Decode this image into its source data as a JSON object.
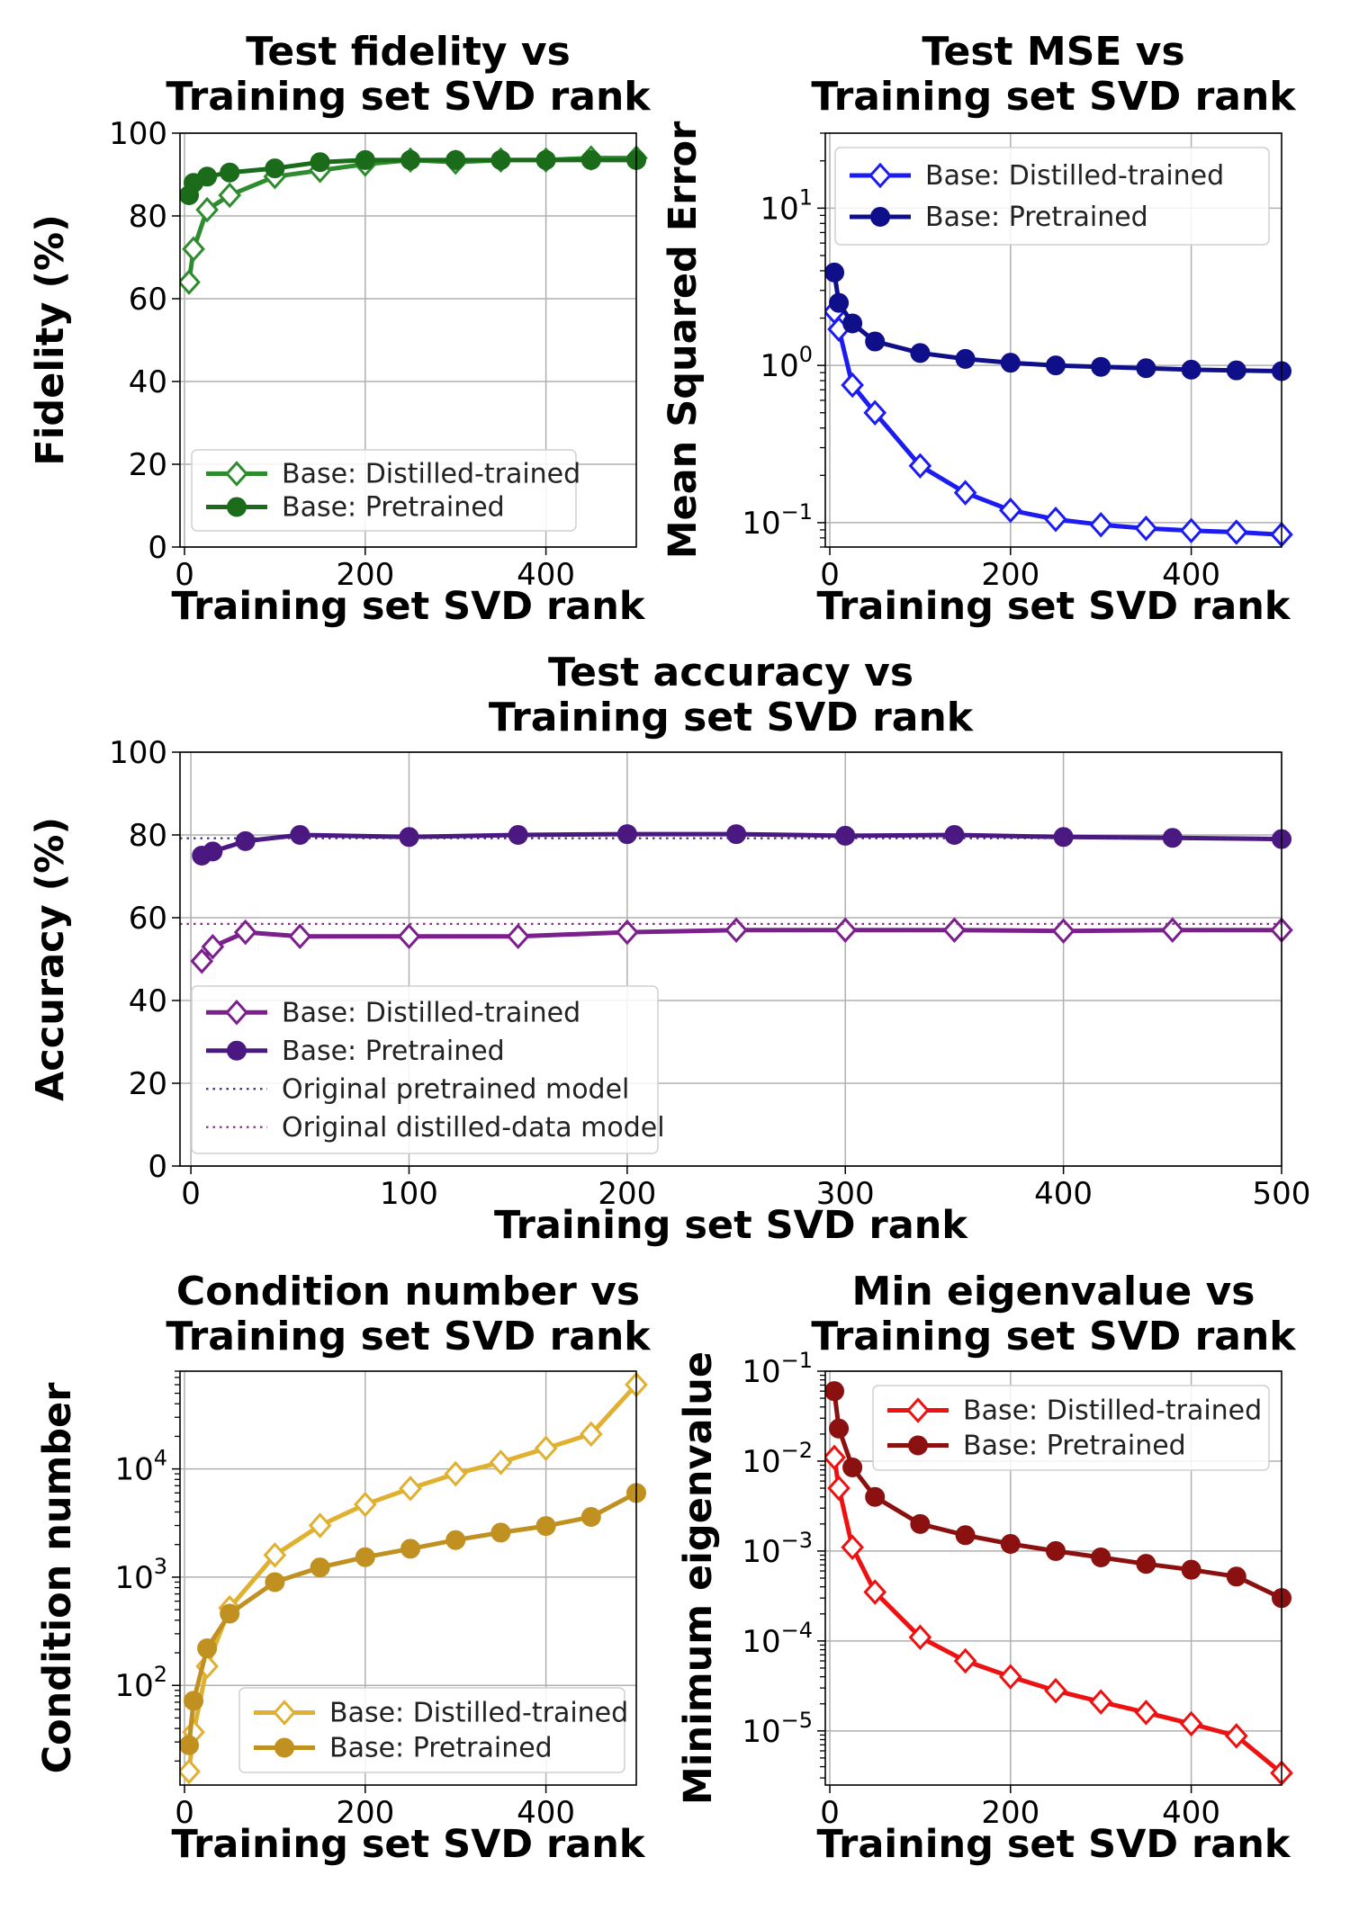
{
  "chart_data": [
    {
      "id": "fidelity",
      "type": "line",
      "title": [
        "Test fidelity vs",
        "Training set SVD rank"
      ],
      "xlabel": "Training set SVD rank",
      "ylabel": "Fidelity (%)",
      "xlim": [
        -5,
        500
      ],
      "ylim": [
        0,
        100
      ],
      "yscale": "linear",
      "xticks": [
        0,
        200,
        400
      ],
      "xtick_labels": [
        "0",
        "200",
        "400"
      ],
      "yticks": [
        0,
        20,
        40,
        60,
        80,
        100
      ],
      "ytick_labels": [
        "0",
        "20",
        "40",
        "60",
        "80",
        "100"
      ],
      "legend_position": "lower-center",
      "series": [
        {
          "name": "Base: Distilled-trained",
          "color": "#2e8b2e",
          "marker": "diamond-open",
          "x": [
            5,
            10,
            25,
            50,
            100,
            150,
            200,
            250,
            300,
            350,
            400,
            450,
            500
          ],
          "values": [
            64,
            72,
            81.5,
            85,
            89.5,
            91,
            92.5,
            93.5,
            93,
            93.5,
            93.5,
            94,
            94
          ]
        },
        {
          "name": "Base: Pretrained",
          "color": "#1a6b1a",
          "marker": "circle",
          "x": [
            5,
            10,
            25,
            50,
            100,
            150,
            200,
            250,
            300,
            350,
            400,
            450,
            500
          ],
          "values": [
            85,
            88,
            89.5,
            90.5,
            91.5,
            93,
            93.5,
            93.5,
            93.5,
            93.5,
            93.5,
            93.5,
            93.5
          ]
        }
      ]
    },
    {
      "id": "mse",
      "type": "line",
      "title": [
        "Test MSE vs",
        "Training set SVD rank"
      ],
      "xlabel": "Training set SVD rank",
      "ylabel": "Mean Squared Error",
      "xlim": [
        -5,
        500
      ],
      "ylim": [
        0.07,
        30
      ],
      "yscale": "log",
      "xticks": [
        0,
        200,
        400
      ],
      "xtick_labels": [
        "0",
        "200",
        "400"
      ],
      "yticks": [
        0.1,
        1,
        10
      ],
      "ytick_labels": [
        "10",
        "10",
        "10"
      ],
      "ytick_exps": [
        "−1",
        "0",
        "1"
      ],
      "legend_position": "upper-right",
      "series": [
        {
          "name": "Base: Distilled-trained",
          "color": "#1c1cf0",
          "marker": "diamond-open",
          "x": [
            5,
            10,
            25,
            50,
            100,
            150,
            200,
            250,
            300,
            350,
            400,
            450,
            500
          ],
          "values": [
            2.2,
            1.7,
            0.75,
            0.5,
            0.23,
            0.155,
            0.12,
            0.105,
            0.097,
            0.092,
            0.089,
            0.087,
            0.084
          ]
        },
        {
          "name": "Base: Pretrained",
          "color": "#0f0f8a",
          "marker": "circle",
          "x": [
            5,
            10,
            25,
            50,
            100,
            150,
            200,
            250,
            300,
            350,
            400,
            450,
            500
          ],
          "values": [
            3.9,
            2.5,
            1.85,
            1.42,
            1.2,
            1.1,
            1.04,
            1.0,
            0.98,
            0.96,
            0.94,
            0.93,
            0.92
          ]
        }
      ]
    },
    {
      "id": "accuracy",
      "type": "line",
      "title": [
        "Test accuracy vs",
        "Training set SVD rank"
      ],
      "xlabel": "Training set SVD rank",
      "ylabel": "Accuracy (%)",
      "xlim": [
        -5,
        500
      ],
      "ylim": [
        0,
        100
      ],
      "yscale": "linear",
      "xticks": [
        0,
        100,
        200,
        300,
        400,
        500
      ],
      "xtick_labels": [
        "0",
        "100",
        "200",
        "300",
        "400",
        "500"
      ],
      "yticks": [
        0,
        20,
        40,
        60,
        80,
        100
      ],
      "ytick_labels": [
        "0",
        "20",
        "40",
        "60",
        "80",
        "100"
      ],
      "legend_position": "lower-left",
      "series": [
        {
          "name": "Base: Distilled-trained",
          "color": "#7b1f8c",
          "marker": "diamond-open",
          "x": [
            5,
            10,
            25,
            50,
            100,
            150,
            200,
            250,
            300,
            350,
            400,
            450,
            500
          ],
          "values": [
            49.5,
            53,
            56.5,
            55.5,
            55.5,
            55.5,
            56.5,
            57,
            57,
            57,
            56.8,
            57,
            57
          ]
        },
        {
          "name": "Base: Pretrained",
          "color": "#4b1882",
          "marker": "circle",
          "x": [
            5,
            10,
            25,
            50,
            100,
            150,
            200,
            250,
            300,
            350,
            400,
            450,
            500
          ],
          "values": [
            75,
            76,
            78.5,
            80,
            79.5,
            80,
            80.2,
            80.2,
            79.8,
            80,
            79.5,
            79.3,
            79
          ]
        },
        {
          "name": "Original pretrained model",
          "color": "#3a2a7a",
          "style": "dotted",
          "y": 79.2
        },
        {
          "name": "Original distilled-data model",
          "color": "#8a2a8a",
          "style": "dotted",
          "y": 58.5
        }
      ]
    },
    {
      "id": "condition",
      "type": "line",
      "title": [
        "Condition number vs",
        "Training set SVD rank"
      ],
      "xlabel": "Training set SVD rank",
      "ylabel": "Condition number",
      "xlim": [
        -5,
        500
      ],
      "ylim": [
        12,
        80000
      ],
      "yscale": "log",
      "xticks": [
        0,
        200,
        400
      ],
      "xtick_labels": [
        "0",
        "200",
        "400"
      ],
      "yticks": [
        100,
        1000,
        10000
      ],
      "ytick_labels": [
        "10",
        "10",
        "10"
      ],
      "ytick_exps": [
        "2",
        "3",
        "4"
      ],
      "legend_position": "lower-right",
      "series": [
        {
          "name": "Base: Distilled-trained",
          "color": "#e0b030",
          "marker": "diamond-open",
          "x": [
            5,
            10,
            25,
            50,
            100,
            150,
            200,
            250,
            300,
            350,
            400,
            450,
            500
          ],
          "values": [
            16,
            37,
            150,
            520,
            1600,
            3000,
            4700,
            6600,
            9000,
            11500,
            15500,
            21000,
            60000
          ]
        },
        {
          "name": "Base: Pretrained",
          "color": "#c09020",
          "marker": "circle",
          "x": [
            5,
            10,
            25,
            50,
            100,
            150,
            200,
            250,
            300,
            350,
            400,
            450,
            500
          ],
          "values": [
            28,
            72,
            220,
            460,
            900,
            1230,
            1530,
            1830,
            2200,
            2580,
            2970,
            3600,
            6000
          ]
        }
      ]
    },
    {
      "id": "eigen",
      "type": "line",
      "title": [
        "Min eigenvalue vs",
        "Training set SVD rank"
      ],
      "xlabel": "Training set SVD rank",
      "ylabel": "Minimum eigenvalue",
      "xlim": [
        -5,
        500
      ],
      "ylim": [
        2.5e-06,
        0.1
      ],
      "yscale": "log",
      "xticks": [
        0,
        200,
        400
      ],
      "xtick_labels": [
        "0",
        "200",
        "400"
      ],
      "yticks": [
        1e-05,
        0.0001,
        0.001,
        0.01,
        0.1
      ],
      "ytick_labels": [
        "10",
        "10",
        "10",
        "10",
        "10"
      ],
      "ytick_exps": [
        "−5",
        "−4",
        "−3",
        "−2",
        "−1"
      ],
      "legend_position": "upper-right",
      "series": [
        {
          "name": "Base: Distilled-trained",
          "color": "#ee1111",
          "marker": "diamond-open",
          "x": [
            5,
            10,
            25,
            50,
            100,
            150,
            200,
            250,
            300,
            350,
            400,
            450,
            500
          ],
          "values": [
            0.011,
            0.005,
            0.0011,
            0.00035,
            0.00011,
            6e-05,
            4e-05,
            2.8e-05,
            2.1e-05,
            1.6e-05,
            1.2e-05,
            8.8e-06,
            3.4e-06
          ]
        },
        {
          "name": "Base: Pretrained",
          "color": "#8b1010",
          "marker": "circle",
          "x": [
            5,
            10,
            25,
            50,
            100,
            150,
            200,
            250,
            300,
            350,
            400,
            450,
            500
          ],
          "values": [
            0.06,
            0.023,
            0.0085,
            0.004,
            0.002,
            0.0015,
            0.0012,
            0.001,
            0.00085,
            0.00072,
            0.00062,
            0.00052,
            0.0003
          ]
        }
      ]
    }
  ]
}
